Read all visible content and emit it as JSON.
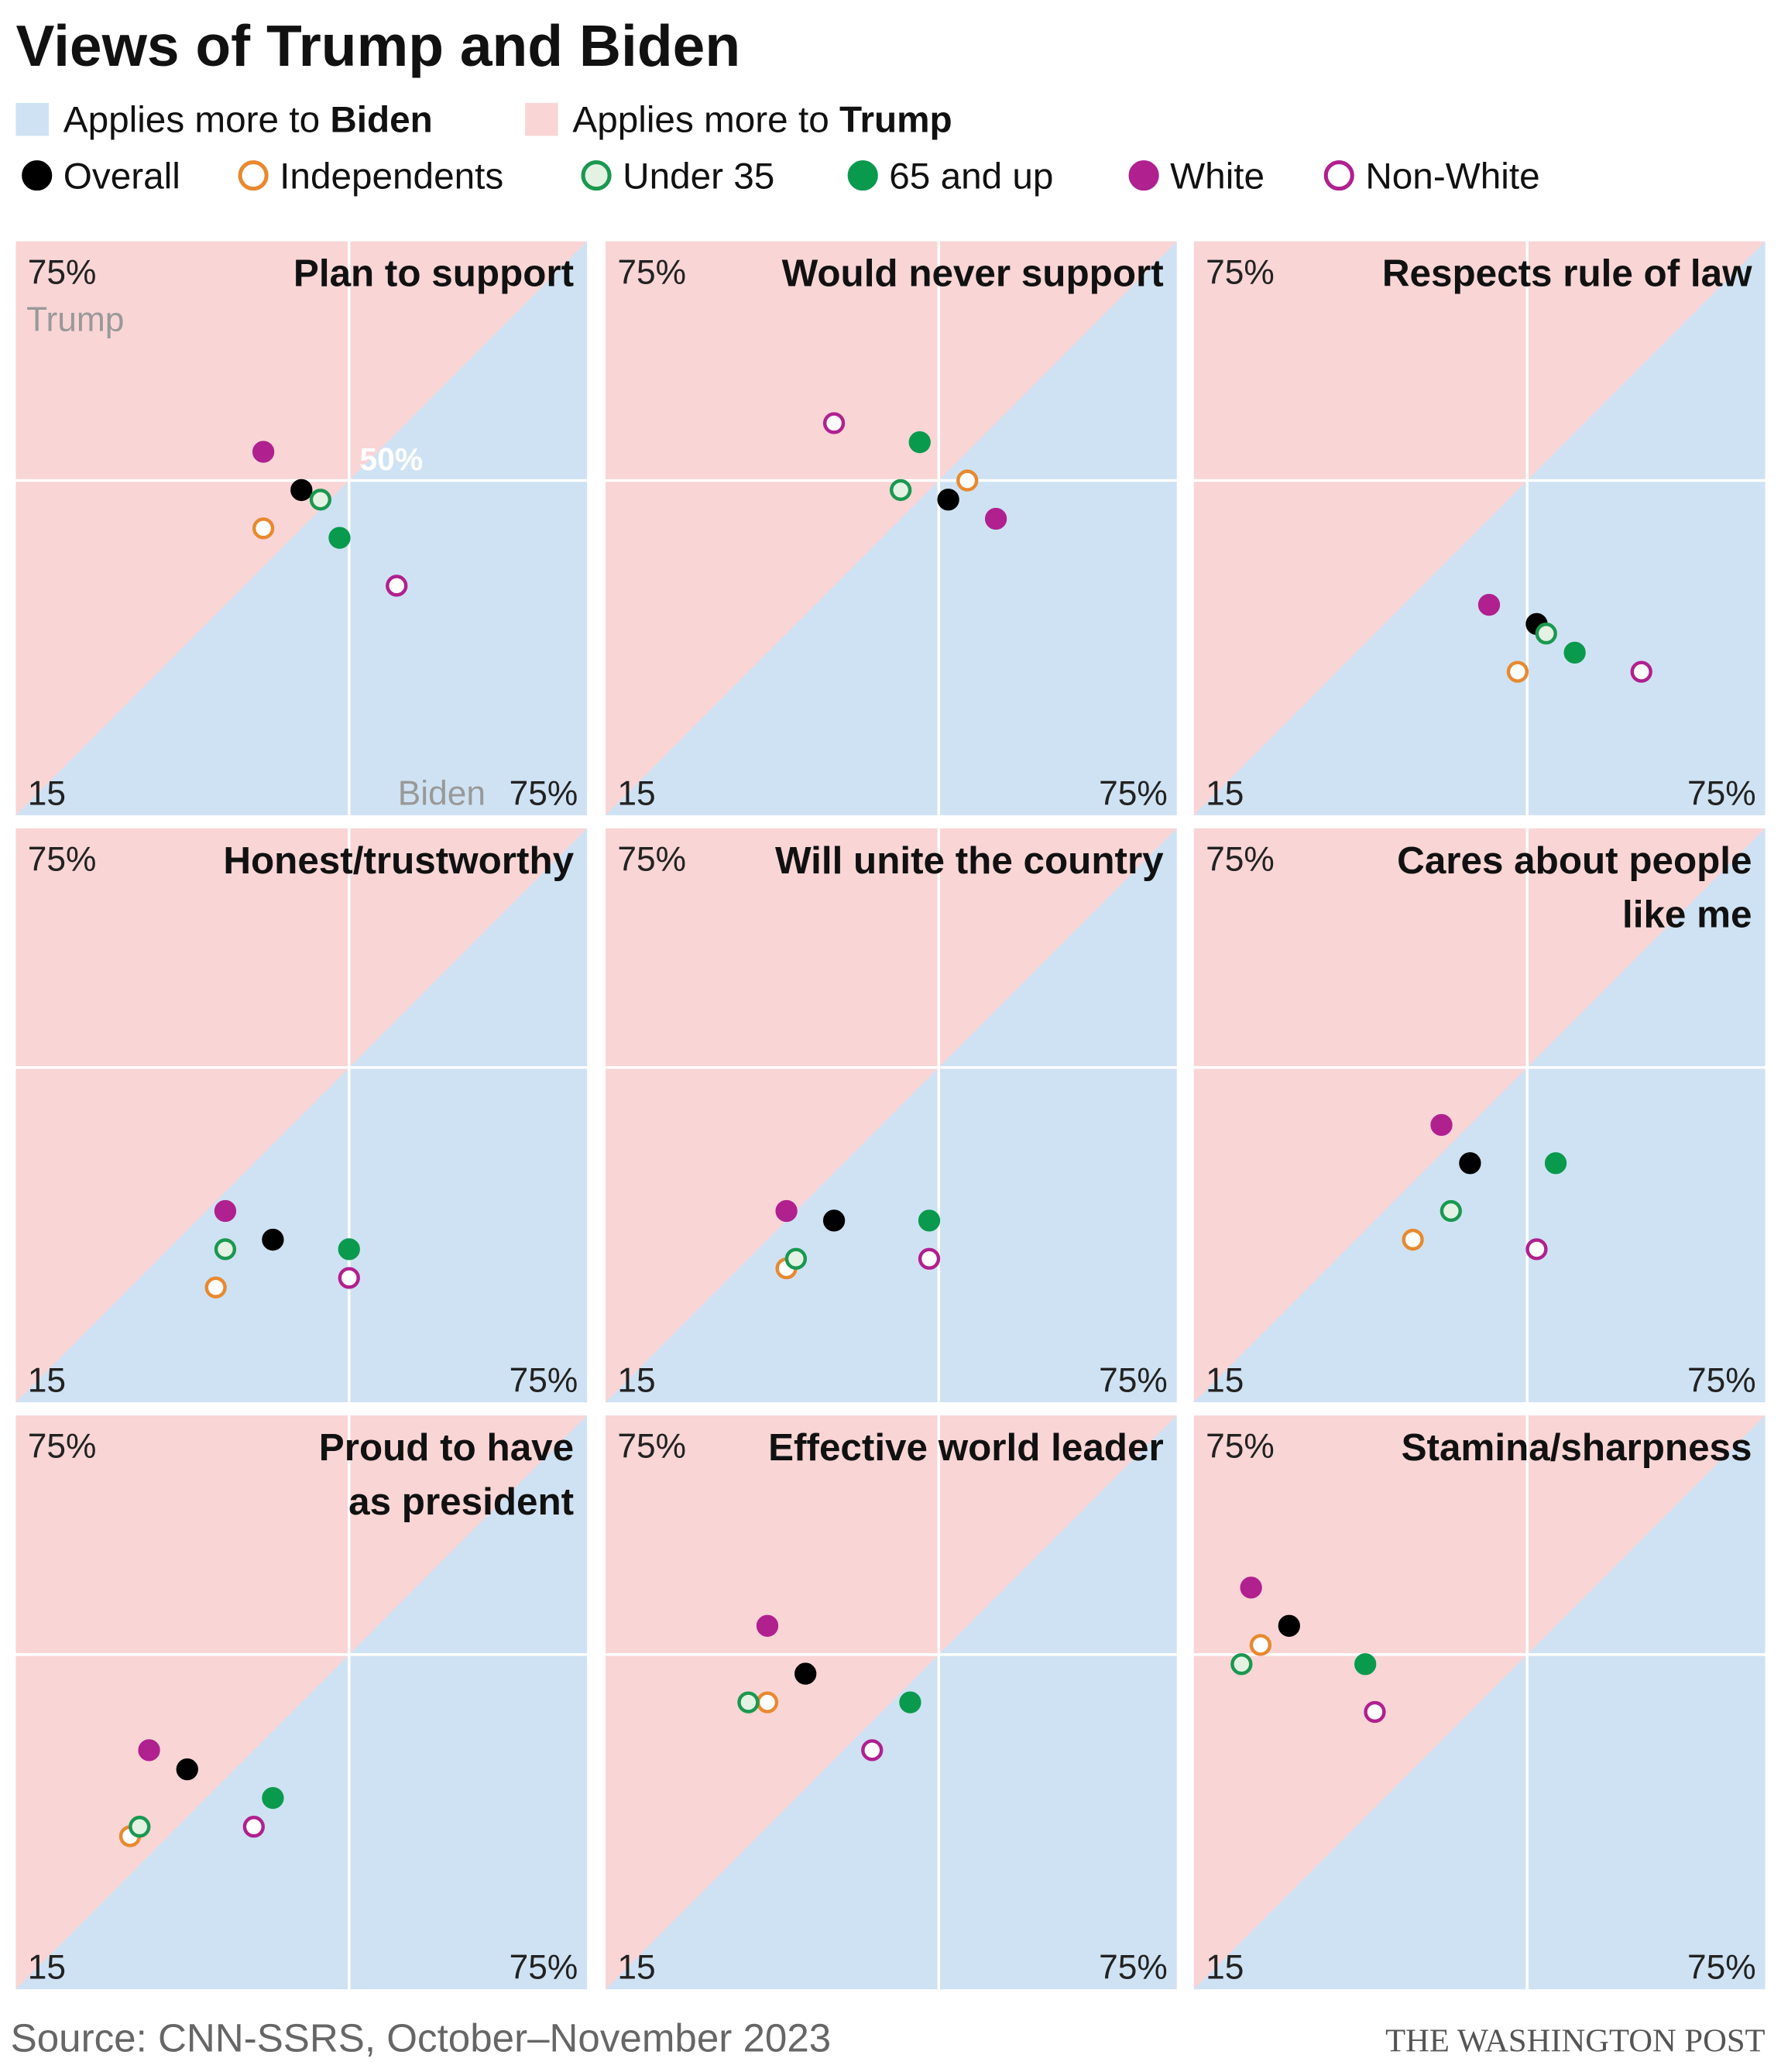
{
  "chart_data": {
    "type": "scatter",
    "title": "Views of Trump and Biden",
    "regions": [
      {
        "text": "Applies more to",
        "emphasis": "Biden",
        "color": "#cfe2f3"
      },
      {
        "text": "Applies more to",
        "emphasis": "Trump",
        "color": "#f9d5d6"
      }
    ],
    "series": [
      {
        "name": "Overall",
        "color": "#000000",
        "fill": "#000000"
      },
      {
        "name": "Independents",
        "color": "#e8892f",
        "fill": "#ffffff"
      },
      {
        "name": "Under 35",
        "color": "#1a9850",
        "fill": "#e3f2e3"
      },
      {
        "name": "65 and up",
        "color": "#0a9a4e",
        "fill": "#0a9a4e"
      },
      {
        "name": "White",
        "color": "#b0208f",
        "fill": "#b0208f"
      },
      {
        "name": "Non-White",
        "color": "#b0208f",
        "fill": "#ffffff"
      }
    ],
    "xlim": [
      15,
      75
    ],
    "ylim": [
      15,
      75
    ],
    "xticks": [
      {
        "value": 15,
        "label": "15"
      },
      {
        "value": 75,
        "label": "75%"
      }
    ],
    "yticks": [
      {
        "value": 75,
        "label": "75%"
      }
    ],
    "midline": {
      "value": 50,
      "label": "50%"
    },
    "axis_labels": {
      "x": "Biden",
      "y": "Trump"
    },
    "panels": [
      {
        "title": [
          "Plan to support"
        ],
        "x": [
          45,
          41,
          47,
          49,
          41,
          55
        ],
        "y": [
          49,
          45,
          48,
          44,
          53,
          39
        ]
      },
      {
        "title": [
          "Would never support"
        ],
        "x": [
          51,
          53,
          46,
          48,
          56,
          39
        ],
        "y": [
          48,
          50,
          49,
          54,
          46,
          56
        ]
      },
      {
        "title": [
          "Respects rule of law"
        ],
        "x": [
          51,
          49,
          52,
          55,
          46,
          62
        ],
        "y": [
          35,
          30,
          34,
          32,
          37,
          30
        ]
      },
      {
        "title": [
          "Honest/trustworthy"
        ],
        "x": [
          42,
          36,
          37,
          50,
          37,
          50
        ],
        "y": [
          32,
          27,
          31,
          31,
          35,
          28
        ]
      },
      {
        "title": [
          "Will unite the country"
        ],
        "x": [
          39,
          34,
          35,
          49,
          34,
          49
        ],
        "y": [
          34,
          29,
          30,
          34,
          35,
          30
        ]
      },
      {
        "title": [
          "Cares about people",
          "like me"
        ],
        "x": [
          44,
          38,
          42,
          53,
          41,
          51
        ],
        "y": [
          40,
          32,
          35,
          40,
          44,
          31
        ]
      },
      {
        "title": [
          "Proud to have",
          "as president"
        ],
        "x": [
          33,
          27,
          28,
          42,
          29,
          40
        ],
        "y": [
          38,
          31,
          32,
          35,
          40,
          32
        ]
      },
      {
        "title": [
          "Effective world leader"
        ],
        "x": [
          36,
          32,
          30,
          47,
          32,
          43
        ],
        "y": [
          48,
          45,
          45,
          45,
          53,
          40
        ]
      },
      {
        "title": [
          "Stamina/sharpness"
        ],
        "x": [
          25,
          22,
          20,
          33,
          21,
          34
        ],
        "y": [
          53,
          51,
          49,
          49,
          57,
          44
        ]
      }
    ],
    "source": "Source: CNN-SSRS, October–November 2023",
    "credit": "THE WASHINGTON POST"
  }
}
